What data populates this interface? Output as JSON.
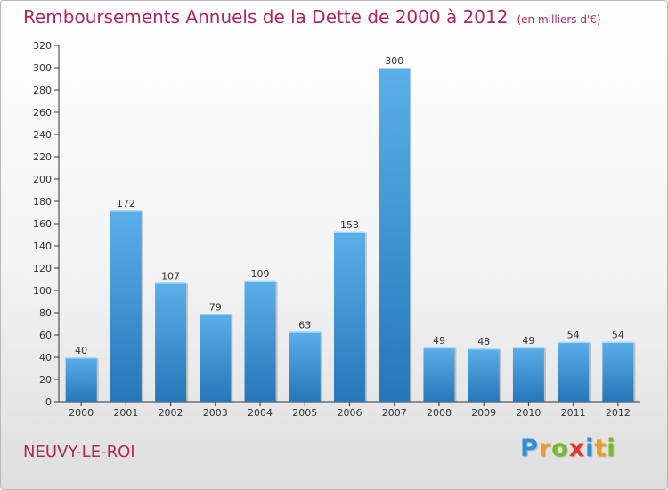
{
  "chart_data": {
    "type": "bar",
    "title": "Remboursements Annuels de la Dette de 2000 à 2012",
    "subtitle": "(en milliers d'€)",
    "categories": [
      "2000",
      "2001",
      "2002",
      "2003",
      "2004",
      "2005",
      "2006",
      "2007",
      "2008",
      "2009",
      "2010",
      "2011",
      "2012"
    ],
    "values": [
      40,
      172,
      107,
      79,
      109,
      63,
      153,
      300,
      49,
      48,
      49,
      54,
      54
    ],
    "ylim": [
      0,
      320
    ],
    "yticks": [
      0,
      20,
      40,
      60,
      80,
      100,
      120,
      140,
      160,
      180,
      200,
      220,
      240,
      260,
      280,
      300,
      320
    ],
    "xlabel": "",
    "ylabel": "",
    "grid": false,
    "colors": {
      "bar_top": "#5ab0ea",
      "bar_bottom": "#2577b8",
      "title": "#b3265c"
    }
  },
  "commune": "NEUVY-LE-ROI",
  "logo": {
    "letters": [
      "P",
      "r",
      "o",
      "x",
      "i",
      "t",
      "i"
    ],
    "colors": [
      "#2d8fd6",
      "#f29b1d",
      "#7ab929",
      "#e8352b",
      "#2d8fd6",
      "#f29b1d",
      "#7ab929"
    ]
  }
}
